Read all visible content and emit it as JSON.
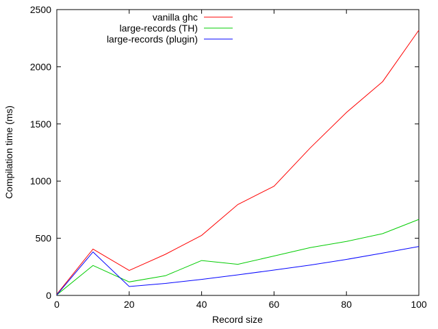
{
  "chart_data": {
    "type": "line",
    "title": "",
    "xlabel": "Record size",
    "ylabel": "Compilation time (ms)",
    "xlim": [
      0,
      100
    ],
    "ylim": [
      0,
      2500
    ],
    "xticks": [
      0,
      20,
      40,
      60,
      80,
      100
    ],
    "yticks": [
      0,
      500,
      1000,
      1500,
      2000,
      2500
    ],
    "grid": false,
    "legend_position": "top-left",
    "series": [
      {
        "name": "vanilla ghc",
        "color": "#ff0000",
        "points": [
          [
            0,
            10
          ],
          [
            10,
            405
          ],
          [
            20,
            218
          ],
          [
            30,
            360
          ],
          [
            40,
            525
          ],
          [
            50,
            795
          ],
          [
            60,
            955
          ],
          [
            70,
            1290
          ],
          [
            80,
            1600
          ],
          [
            90,
            1870
          ],
          [
            100,
            2320
          ]
        ]
      },
      {
        "name": "large-records (TH)",
        "color": "#00cc00",
        "points": [
          [
            0,
            5
          ],
          [
            10,
            262
          ],
          [
            20,
            118
          ],
          [
            30,
            172
          ],
          [
            40,
            305
          ],
          [
            50,
            272
          ],
          [
            60,
            345
          ],
          [
            70,
            418
          ],
          [
            80,
            472
          ],
          [
            90,
            540
          ],
          [
            100,
            665
          ]
        ]
      },
      {
        "name": "large-records (plugin)",
        "color": "#0000ff",
        "points": [
          [
            0,
            5
          ],
          [
            10,
            380
          ],
          [
            20,
            78
          ],
          [
            30,
            105
          ],
          [
            40,
            140
          ],
          [
            50,
            180
          ],
          [
            60,
            222
          ],
          [
            70,
            265
          ],
          [
            80,
            315
          ],
          [
            90,
            370
          ],
          [
            100,
            428
          ]
        ]
      }
    ]
  }
}
